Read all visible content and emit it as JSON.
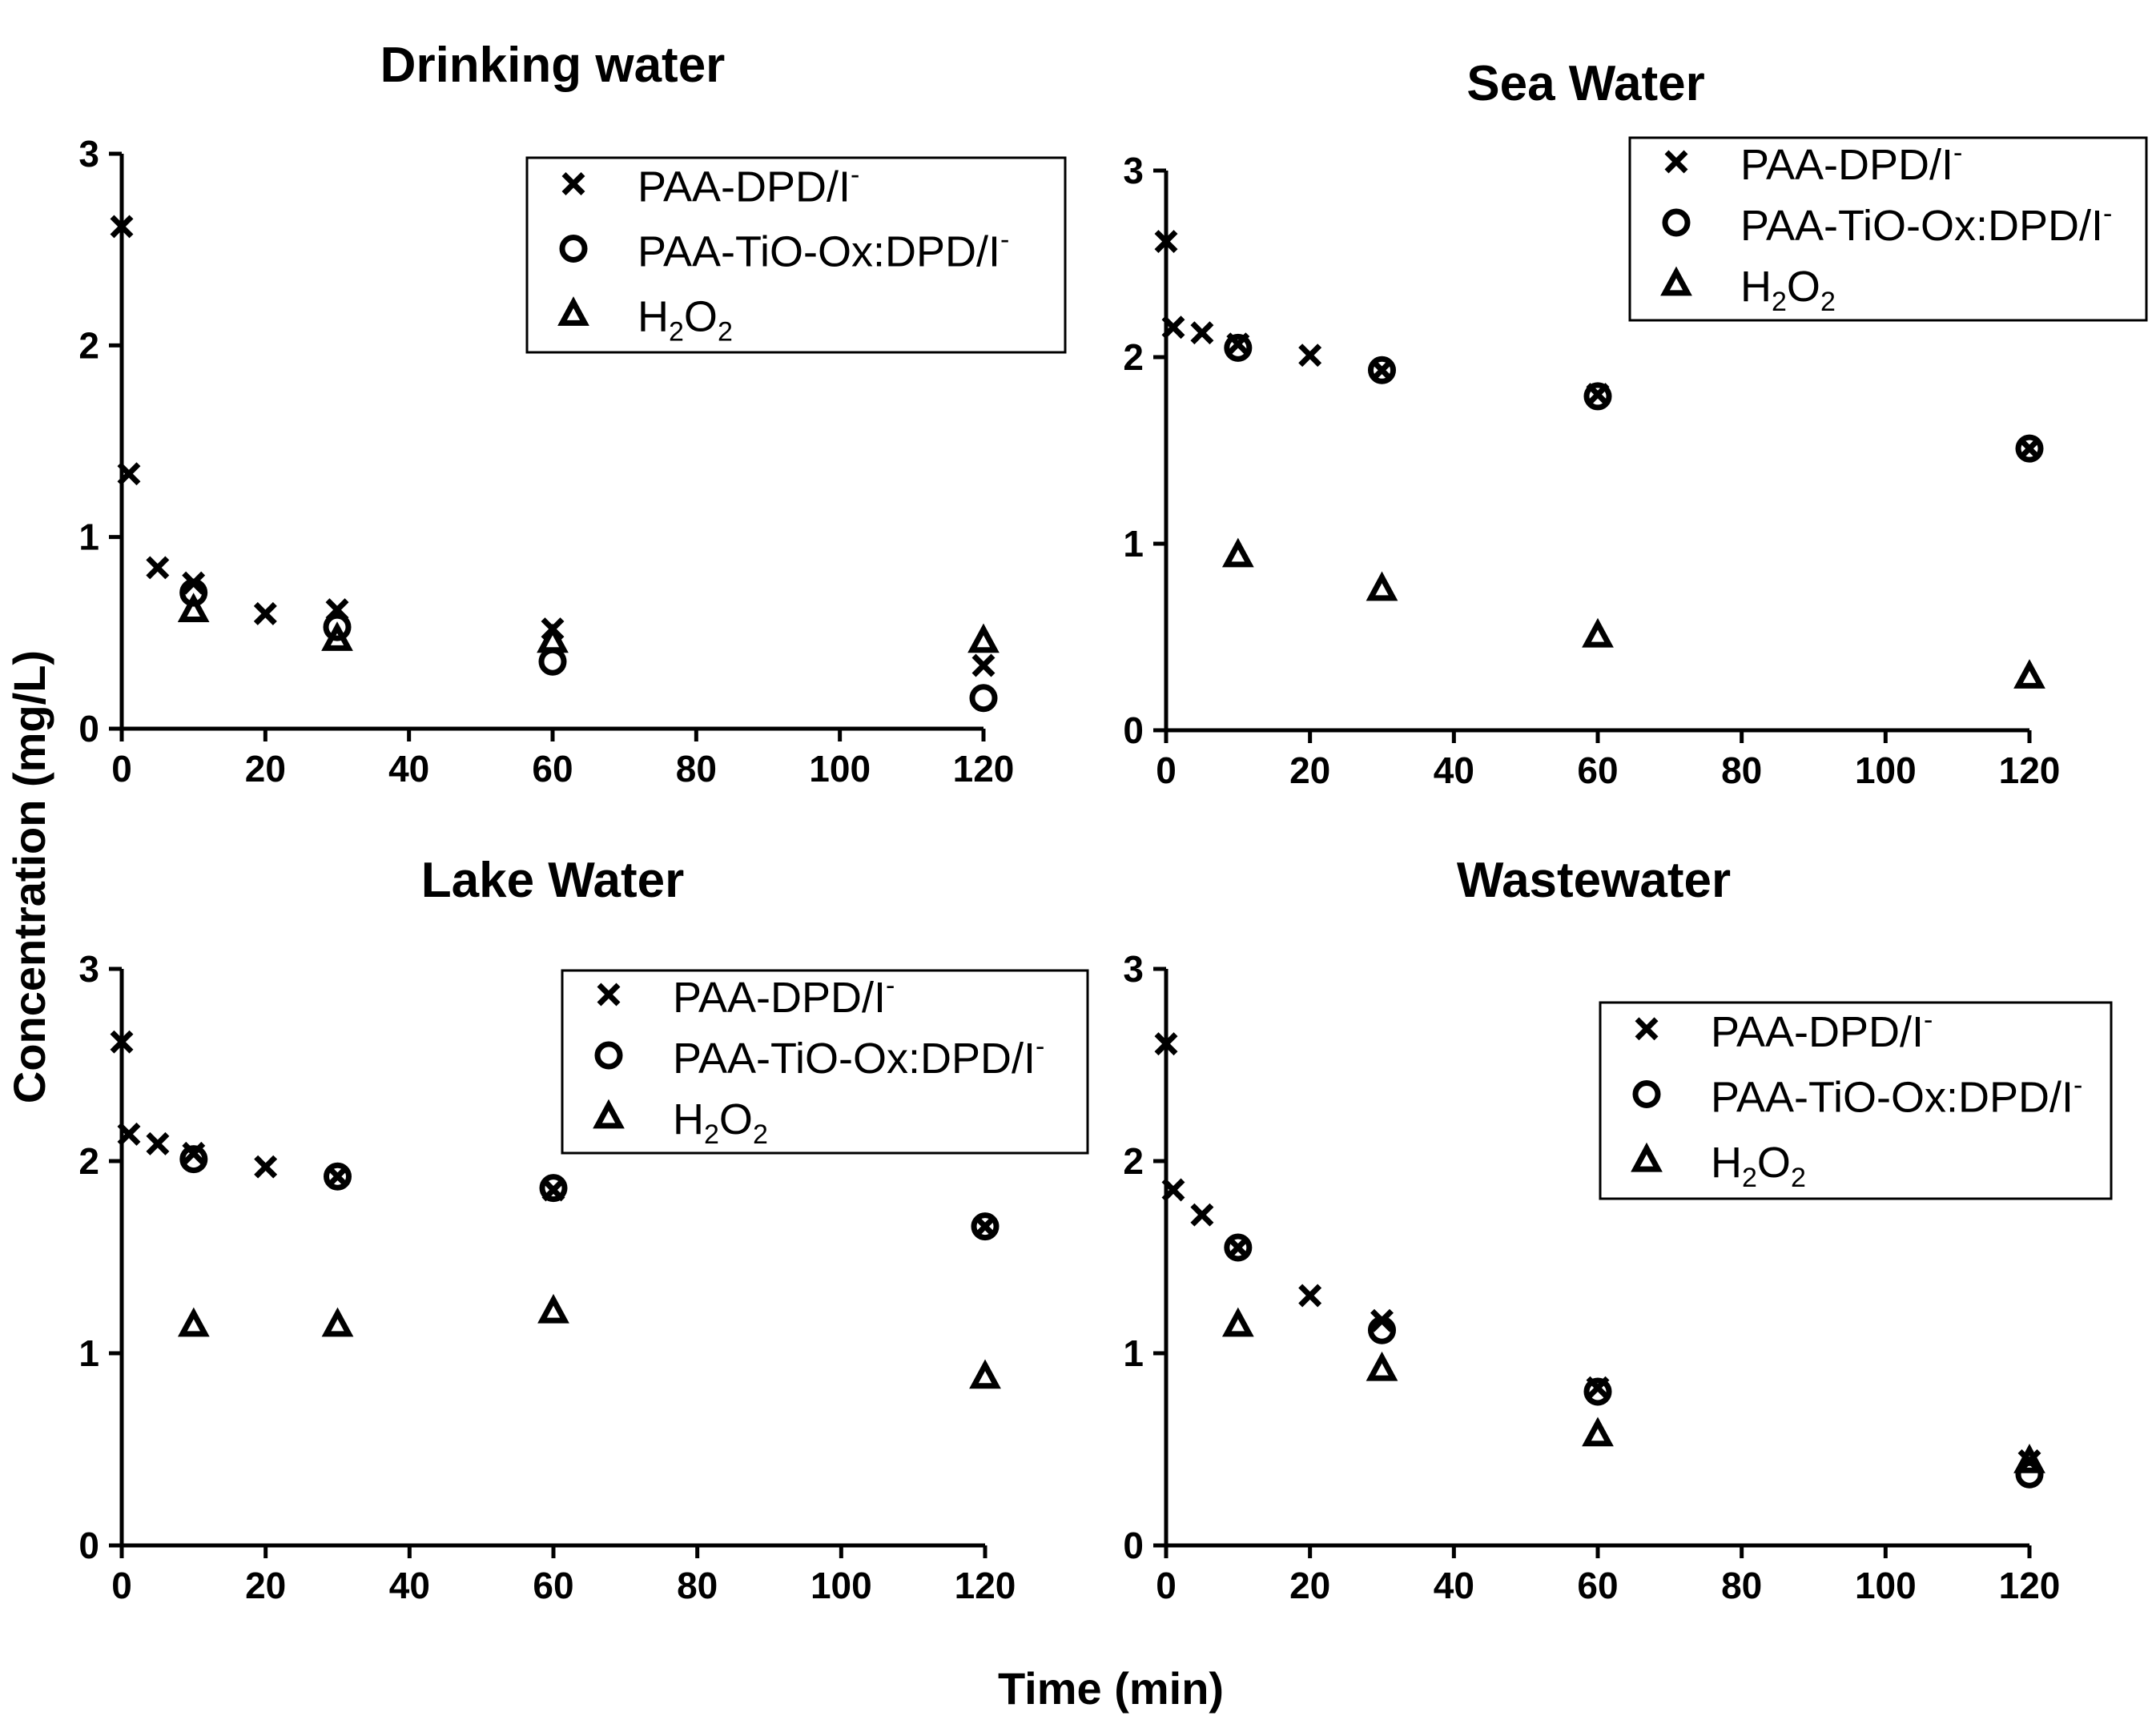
{
  "figure": {
    "y_axis_title": "Concentration (mg/L)",
    "x_axis_title": "Time (min)"
  },
  "legend_entries": [
    {
      "marker": "cross",
      "text": "PAA-DPD/I",
      "sup": "-"
    },
    {
      "marker": "circle",
      "text": "PAA-TiO-Ox:DPD/I",
      "sup": "-"
    },
    {
      "marker": "triangle",
      "base": "H",
      "sub1": "2",
      "mid": "O",
      "sub2": "2"
    }
  ],
  "colors": {
    "marker": "#000000",
    "axis": "#000000",
    "background": "#ffffff"
  },
  "chart_data": [
    {
      "type": "scatter",
      "title": "Drinking water",
      "xlim": [
        0,
        120
      ],
      "ylim": [
        0,
        3
      ],
      "xticks": [
        0,
        20,
        40,
        60,
        80,
        100,
        120
      ],
      "yticks": [
        0,
        1,
        2,
        3
      ],
      "legend": "top-right",
      "series": [
        {
          "marker": "cross",
          "x": [
            0,
            1,
            5,
            10,
            20,
            30,
            60,
            120
          ],
          "y": [
            2.62,
            1.33,
            0.84,
            0.76,
            0.6,
            0.62,
            0.52,
            0.33
          ]
        },
        {
          "marker": "circle",
          "x": [
            10,
            30,
            60,
            120
          ],
          "y": [
            0.71,
            0.53,
            0.35,
            0.16
          ]
        },
        {
          "marker": "triangle",
          "x": [
            10,
            30,
            60,
            120
          ],
          "y": [
            0.62,
            0.47,
            0.46,
            0.46
          ]
        }
      ]
    },
    {
      "type": "scatter",
      "title": "Sea Water",
      "xlim": [
        0,
        120
      ],
      "ylim": [
        0,
        3
      ],
      "xticks": [
        0,
        20,
        40,
        60,
        80,
        100,
        120
      ],
      "yticks": [
        0,
        1,
        2,
        3
      ],
      "legend": "top-right",
      "series": [
        {
          "marker": "cross",
          "x": [
            0,
            1,
            5,
            10,
            20,
            30,
            60,
            120
          ],
          "y": [
            2.62,
            2.16,
            2.13,
            2.07,
            2.01,
            1.93,
            1.8,
            1.51
          ]
        },
        {
          "marker": "circle",
          "x": [
            10,
            30,
            60,
            120
          ],
          "y": [
            2.05,
            1.93,
            1.79,
            1.51
          ]
        },
        {
          "marker": "triangle",
          "x": [
            10,
            30,
            60,
            120
          ],
          "y": [
            0.94,
            0.76,
            0.51,
            0.29
          ]
        }
      ]
    },
    {
      "type": "scatter",
      "title": "Lake Water",
      "xlim": [
        0,
        120
      ],
      "ylim": [
        0,
        3
      ],
      "xticks": [
        0,
        20,
        40,
        60,
        80,
        100,
        120
      ],
      "yticks": [
        0,
        1,
        2,
        3
      ],
      "legend": "top-right",
      "series": [
        {
          "marker": "cross",
          "x": [
            0,
            1,
            5,
            10,
            20,
            30,
            60,
            120
          ],
          "y": [
            2.62,
            2.14,
            2.09,
            2.04,
            1.97,
            1.92,
            1.85,
            1.66
          ]
        },
        {
          "marker": "circle",
          "x": [
            10,
            30,
            60,
            120
          ],
          "y": [
            2.01,
            1.92,
            1.86,
            1.66
          ]
        },
        {
          "marker": "triangle",
          "x": [
            10,
            30,
            60,
            120
          ],
          "y": [
            1.15,
            1.15,
            1.22,
            0.88
          ]
        }
      ]
    },
    {
      "type": "scatter",
      "title": "Wastewater",
      "xlim": [
        0,
        120
      ],
      "ylim": [
        0,
        3
      ],
      "xticks": [
        0,
        20,
        40,
        60,
        80,
        100,
        120
      ],
      "yticks": [
        0,
        1,
        2,
        3
      ],
      "legend": "top-right",
      "series": [
        {
          "marker": "cross",
          "x": [
            0,
            1,
            5,
            10,
            20,
            30,
            60,
            120
          ],
          "y": [
            2.61,
            1.85,
            1.72,
            1.55,
            1.3,
            1.17,
            0.82,
            0.44
          ]
        },
        {
          "marker": "circle",
          "x": [
            10,
            30,
            60,
            120
          ],
          "y": [
            1.55,
            1.12,
            0.8,
            0.37
          ]
        },
        {
          "marker": "triangle",
          "x": [
            10,
            30,
            60,
            120
          ],
          "y": [
            1.15,
            0.92,
            0.58,
            0.44
          ]
        }
      ]
    }
  ]
}
